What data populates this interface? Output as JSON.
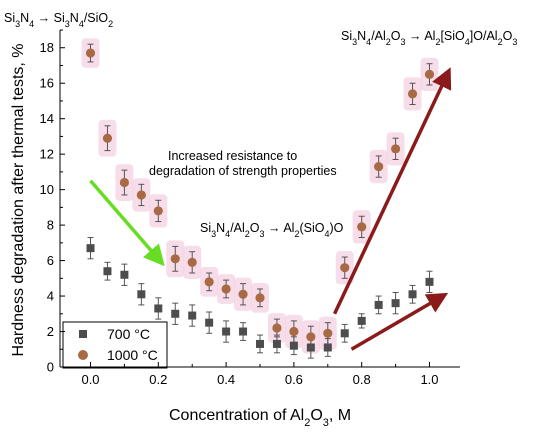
{
  "chart_data": {
    "type": "scatter",
    "xlabel": {
      "pre": "Concentration of Al",
      "sub": "2",
      "mid": "O",
      "sub2": "3",
      "post": ", M"
    },
    "ylabel": "Hardness degradation after thermal tests, %",
    "xlim": [
      -0.09,
      1.09
    ],
    "ylim": [
      0,
      19
    ],
    "xticks": [
      "0.0",
      "0.2",
      "0.4",
      "0.6",
      "0.8",
      "1.0"
    ],
    "yticks": [
      "0",
      "2",
      "4",
      "6",
      "8",
      "10",
      "12",
      "14",
      "16",
      "18"
    ],
    "series": [
      {
        "name": "700 °C",
        "color": "#4d4d4d",
        "marker": "square",
        "x": [
          0.0,
          0.05,
          0.1,
          0.15,
          0.2,
          0.25,
          0.3,
          0.35,
          0.4,
          0.45,
          0.5,
          0.55,
          0.6,
          0.65,
          0.7,
          0.75,
          0.8,
          0.85,
          0.9,
          0.95,
          1.0
        ],
        "y": [
          6.7,
          5.4,
          5.2,
          4.1,
          3.3,
          3.0,
          2.9,
          2.5,
          2.0,
          2.0,
          1.3,
          1.3,
          1.2,
          1.1,
          1.1,
          1.9,
          2.6,
          3.5,
          3.6,
          4.1,
          4.8
        ],
        "err": [
          0.6,
          0.5,
          0.6,
          0.6,
          0.6,
          0.6,
          0.6,
          0.6,
          0.6,
          0.5,
          0.5,
          0.5,
          0.5,
          0.6,
          0.5,
          0.5,
          0.4,
          0.5,
          0.6,
          0.5,
          0.6
        ]
      },
      {
        "name": "1000 °C",
        "color": "#a86a45",
        "marker": "circle",
        "x": [
          0.0,
          0.05,
          0.1,
          0.15,
          0.2,
          0.25,
          0.3,
          0.35,
          0.4,
          0.45,
          0.5,
          0.55,
          0.6,
          0.65,
          0.7,
          0.75,
          0.8,
          0.85,
          0.9,
          0.95,
          1.0
        ],
        "y": [
          17.7,
          12.9,
          10.4,
          9.7,
          8.8,
          6.1,
          5.9,
          4.8,
          4.4,
          4.1,
          3.9,
          2.2,
          2.0,
          1.7,
          1.9,
          5.6,
          7.9,
          11.3,
          12.3,
          15.4,
          16.5
        ],
        "err": [
          0.5,
          0.7,
          0.7,
          0.6,
          0.6,
          0.7,
          0.6,
          0.5,
          0.5,
          0.6,
          0.5,
          0.5,
          0.6,
          0.6,
          0.6,
          0.6,
          0.6,
          0.6,
          0.6,
          0.6,
          0.6
        ]
      }
    ],
    "annotations": {
      "left_top": {
        "a": "Si",
        "a1": "3",
        "b": "N",
        "b1": "4",
        "arrow": " → ",
        "c": "Si",
        "c1": "3",
        "d": "N",
        "d1": "4",
        "e": "/SiO",
        "e1": "2"
      },
      "right_top": {
        "a": "Si",
        "a1": "3",
        "b": "N",
        "b1": "4",
        "c": "/Al",
        "c1": "2",
        "d": "O",
        "d1": "3",
        "arrow": " → ",
        "e": "Al",
        "e1": "2",
        "f": "[SiO",
        "f1": "4",
        "g": "]O/Al",
        "g1": "2",
        "h": "O",
        "h1": "3"
      },
      "middle": {
        "a": "Si",
        "a1": "3",
        "b": "N",
        "b1": "4",
        "c": "/Al",
        "c1": "2",
        "d": "O",
        "d1": "3",
        "arrow": " → ",
        "e": "Al",
        "e1": "2",
        "f": "(SiO",
        "f1": "4",
        "g": ")O"
      },
      "resistance_line1": "Increased resistance to",
      "resistance_line2": "degradation of strength properties"
    },
    "arrows": [
      {
        "color": "#66dd22",
        "from": [
          0.0,
          10.5
        ],
        "to": [
          0.2,
          6.1
        ]
      },
      {
        "color": "#8b1a1a",
        "from": [
          0.72,
          3.0
        ],
        "to": [
          1.05,
          16.4
        ]
      },
      {
        "color": "#8b1a1a",
        "from": [
          0.77,
          1.0
        ],
        "to": [
          1.03,
          3.9
        ]
      }
    ],
    "legend": {
      "placement": "bottom-left"
    }
  }
}
